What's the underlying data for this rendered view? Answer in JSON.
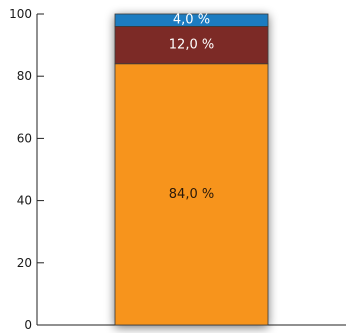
{
  "chart_data": {
    "type": "bar",
    "stacked": true,
    "categories": [
      ""
    ],
    "series": [
      {
        "values": [
          84.0
        ],
        "label": "84,0 %",
        "color": "#f7941d",
        "label_color": "#2b1a0a"
      },
      {
        "values": [
          12.0
        ],
        "label": "12,0 %",
        "color": "#7b2a25",
        "label_color": "#ffffff"
      },
      {
        "values": [
          4.0
        ],
        "label": "4,0 %",
        "color": "#1e7bc1",
        "label_color": "#ffffff"
      }
    ],
    "ylim": [
      0,
      100
    ],
    "yticks": [
      0,
      20,
      40,
      60,
      80,
      100
    ],
    "ytick_labels": [
      "0",
      "20",
      "40",
      "60",
      "80",
      "100"
    ],
    "grid": false,
    "bar_shadow": true,
    "title": "",
    "xlabel": "",
    "ylabel": ""
  }
}
